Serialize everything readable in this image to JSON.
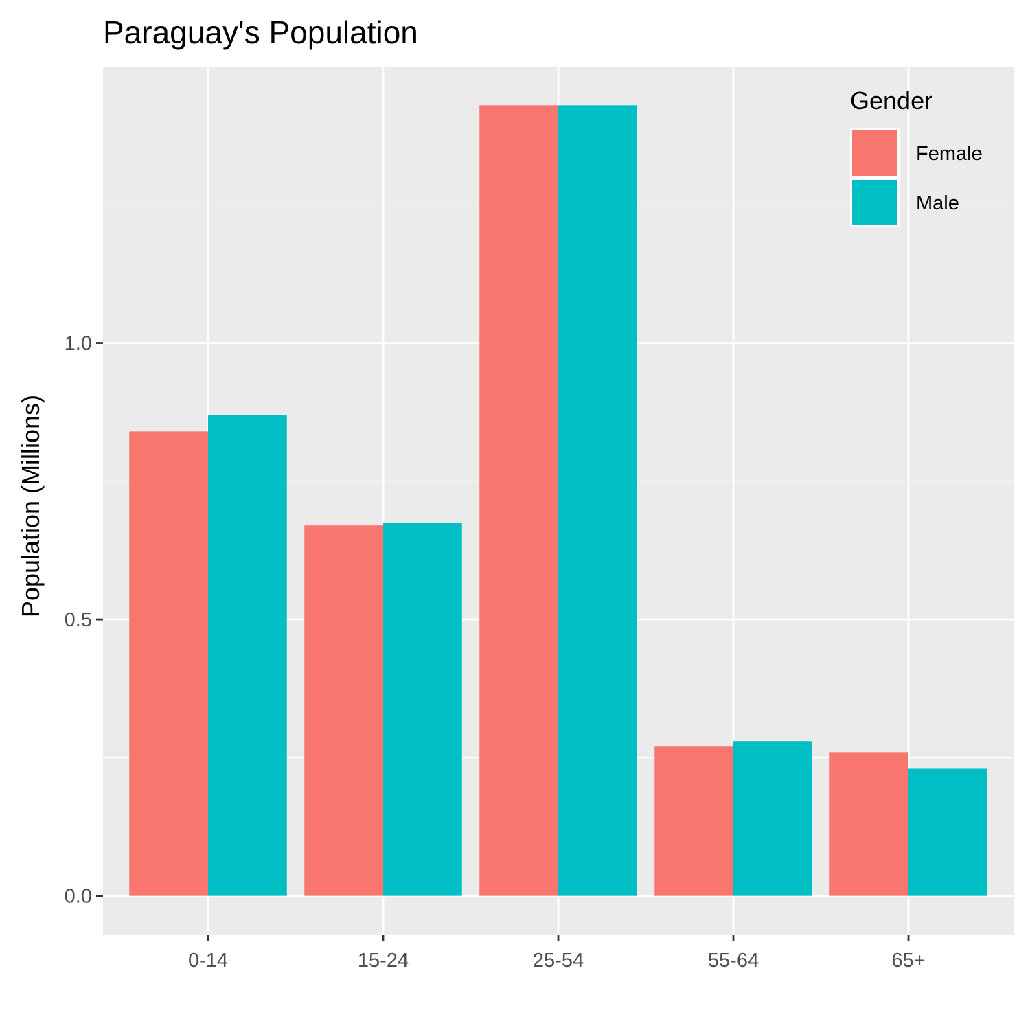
{
  "chart_data": {
    "type": "bar",
    "title": "Paraguay's Population",
    "xlabel": "",
    "ylabel": "Population (Millions)",
    "categories": [
      "0-14",
      "15-24",
      "25-54",
      "55-64",
      "65+"
    ],
    "series": [
      {
        "name": "Female",
        "color": "#F8766D",
        "values": [
          0.84,
          0.67,
          1.43,
          0.27,
          0.26
        ]
      },
      {
        "name": "Male",
        "color": "#00BFC4",
        "values": [
          0.87,
          0.675,
          1.43,
          0.28,
          0.23
        ]
      }
    ],
    "ylim": [
      -0.07,
      1.5
    ],
    "y_ticks": [
      0.0,
      0.5,
      1.0
    ],
    "y_tick_labels": [
      "0.0",
      "0.5",
      "1.0"
    ],
    "grid": true,
    "legend": {
      "title": "Gender",
      "position": "top-right"
    },
    "panel_background": "#EBEBEB",
    "grid_color": "#FFFFFF"
  }
}
